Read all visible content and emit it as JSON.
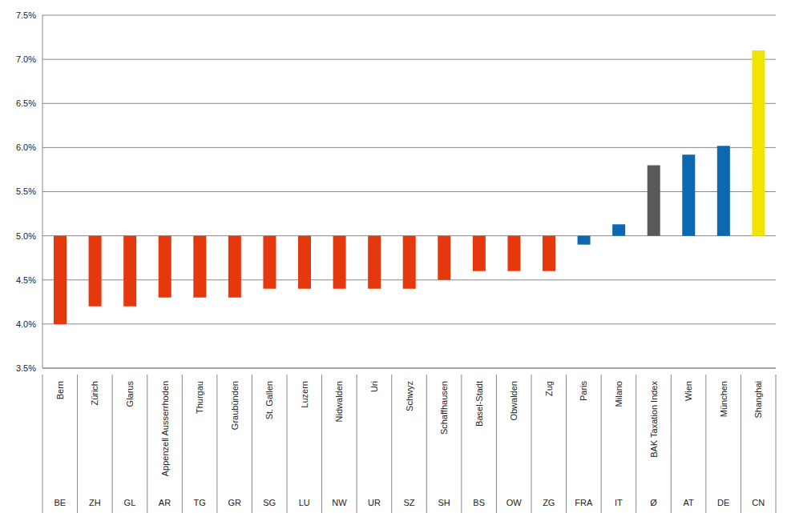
{
  "chart_data": {
    "type": "bar",
    "baseline": 5,
    "categories": [
      "Bern",
      "Zürich",
      "Glarus",
      "Appenzell Ausserrhoden",
      "Thurgau",
      "Graubünden",
      "St. Gallen",
      "Luzern",
      "Nidwalden",
      "Uri",
      "Schwyz",
      "Schaffhausen",
      "Basel-Stadt",
      "Obwalden",
      "Zug",
      "Paris",
      "Milano",
      "BAK Taxation Index",
      "Wien",
      "München",
      "Shanghai"
    ],
    "category_codes": [
      "BE",
      "ZH",
      "GL",
      "AR",
      "TG",
      "GR",
      "SG",
      "LU",
      "NW",
      "UR",
      "SZ",
      "SH",
      "BS",
      "OW",
      "ZG",
      "FRA",
      "IT",
      "Ø",
      "AT",
      "DE",
      "CN"
    ],
    "values": [
      4.0,
      4.2,
      4.2,
      4.3,
      4.3,
      4.3,
      4.4,
      4.4,
      4.4,
      4.4,
      4.4,
      4.5,
      4.6,
      4.6,
      4.6,
      4.9,
      5.13,
      5.8,
      5.92,
      6.02,
      7.1
    ],
    "colors": [
      "#e5390d",
      "#e5390d",
      "#e5390d",
      "#e5390d",
      "#e5390d",
      "#e5390d",
      "#e5390d",
      "#e5390d",
      "#e5390d",
      "#e5390d",
      "#e5390d",
      "#e5390d",
      "#e5390d",
      "#e5390d",
      "#e5390d",
      "#0b68b1",
      "#0b68b1",
      "#58595b",
      "#0b68b1",
      "#0b68b1",
      "#f0e500"
    ],
    "ylim": [
      3.5,
      7.5
    ],
    "yticks": [
      {
        "value": 3.5,
        "label": "3.5%"
      },
      {
        "value": 4.0,
        "label": "4.0%"
      },
      {
        "value": 4.5,
        "label": "4.5%"
      },
      {
        "value": 5.0,
        "label": "5.0%"
      },
      {
        "value": 5.5,
        "label": "5.5%"
      },
      {
        "value": 6.0,
        "label": "6.0%"
      },
      {
        "value": 6.5,
        "label": "6.5%"
      },
      {
        "value": 7.0,
        "label": "7.0%"
      },
      {
        "value": 7.5,
        "label": "7.5%"
      }
    ],
    "grid": true
  }
}
